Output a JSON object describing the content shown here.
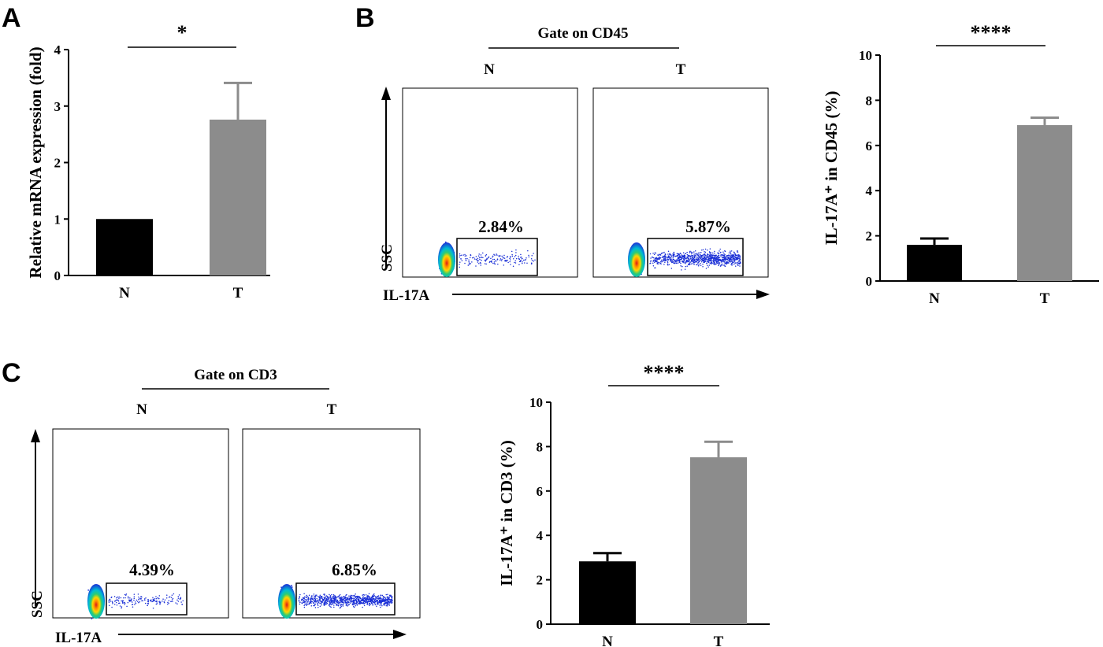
{
  "panels": {
    "A": {
      "letter": "A"
    },
    "B": {
      "letter": "B",
      "gate_label": "Gate on CD45",
      "x_label": "IL-17A",
      "y_label": "SSC"
    },
    "C": {
      "letter": "C",
      "gate_label": "Gate on CD3",
      "x_label": "IL-17A",
      "y_label": "SSC"
    }
  },
  "flow_plots": {
    "B": [
      {
        "label": "N",
        "percent": "2.84%",
        "density": "sparse"
      },
      {
        "label": "T",
        "percent": "5.87%",
        "density": "dense"
      }
    ],
    "C": [
      {
        "label": "N",
        "percent": "4.39%",
        "density": "sparse"
      },
      {
        "label": "T",
        "percent": "6.85%",
        "density": "dense"
      }
    ]
  },
  "chart_data": [
    {
      "id": "A",
      "type": "bar",
      "categories": [
        "N",
        "T"
      ],
      "values": [
        1.0,
        2.76
      ],
      "errors": [
        0.0,
        0.65
      ],
      "ylabel": "Relative mRNA expression (fold)",
      "ylim": [
        0,
        4
      ],
      "yticks": [
        "0",
        "1",
        "2",
        "3",
        "4"
      ],
      "significance": "*",
      "colors": [
        "#000000",
        "#8c8c8c"
      ]
    },
    {
      "id": "B",
      "type": "bar",
      "categories": [
        "N",
        "T"
      ],
      "values": [
        1.6,
        6.9
      ],
      "errors": [
        0.28,
        0.33
      ],
      "ylabel": "IL-17A⁺ in CD45 (%)",
      "ylim": [
        0,
        10
      ],
      "yticks": [
        "0",
        "2",
        "4",
        "6",
        "8",
        "10"
      ],
      "significance": "****",
      "colors": [
        "#000000",
        "#8c8c8c"
      ]
    },
    {
      "id": "C",
      "type": "bar",
      "categories": [
        "N",
        "T"
      ],
      "values": [
        2.83,
        7.52
      ],
      "errors": [
        0.37,
        0.7
      ],
      "ylabel": "IL-17A⁺ in CD3 (%)",
      "ylim": [
        0,
        10
      ],
      "yticks": [
        "0",
        "2",
        "4",
        "6",
        "8",
        "10"
      ],
      "significance": "****",
      "colors": [
        "#000000",
        "#8c8c8c"
      ]
    }
  ]
}
